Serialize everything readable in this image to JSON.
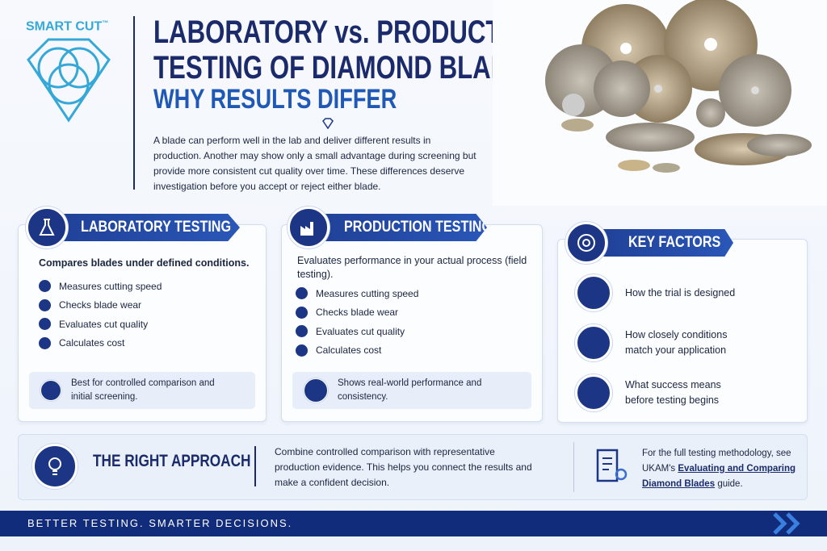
{
  "header": {
    "logo": "SMART CUT",
    "logo_mark": "™",
    "title_line1": "LABORATORY vs. PRODUCTION",
    "title_line2": "TESTING OF DIAMOND BLADES",
    "subtitle": "WHY RESULTS DIFFER",
    "intro": "A blade can perform well in the lab and deliver different results in production. Another may show only a small advantage during screening but provide more consistent cut quality over time. These differences deserve investigation before you accept or reject either blade."
  },
  "cards": [
    {
      "title": "LABORATORY TESTING",
      "lead": "Compares blades under defined conditions.",
      "items": [
        "Measures cutting speed",
        "Checks blade wear",
        "Evaluates cut quality",
        "Calculates cost"
      ],
      "note": "Best for controlled comparison and initial screening."
    },
    {
      "title": "PRODUCTION TESTING",
      "lead": "Evaluates performance in your actual process (field testing).",
      "items": [
        "Measures cutting speed",
        "Checks blade wear",
        "Evaluates cut quality",
        "Calculates cost"
      ],
      "note": "Shows real-world performance and consistency."
    }
  ],
  "key_factors": {
    "title": "KEY FACTORS",
    "items": [
      "How the trial is designed",
      "How closely conditions match your application",
      "What success means before testing begins"
    ]
  },
  "approach": {
    "title": "THE RIGHT APPROACH",
    "text": "Combine controlled comparison with representative production evidence. This helps you connect the results and make a confident decision.",
    "link_prefix": "For the full testing methodology, see UKAM's",
    "link": "Evaluating and Comparing Diamond Blades",
    "link_suffix": "guide."
  },
  "footer": {
    "tagline": "BETTER TESTING. SMARTER DECISIONS."
  }
}
